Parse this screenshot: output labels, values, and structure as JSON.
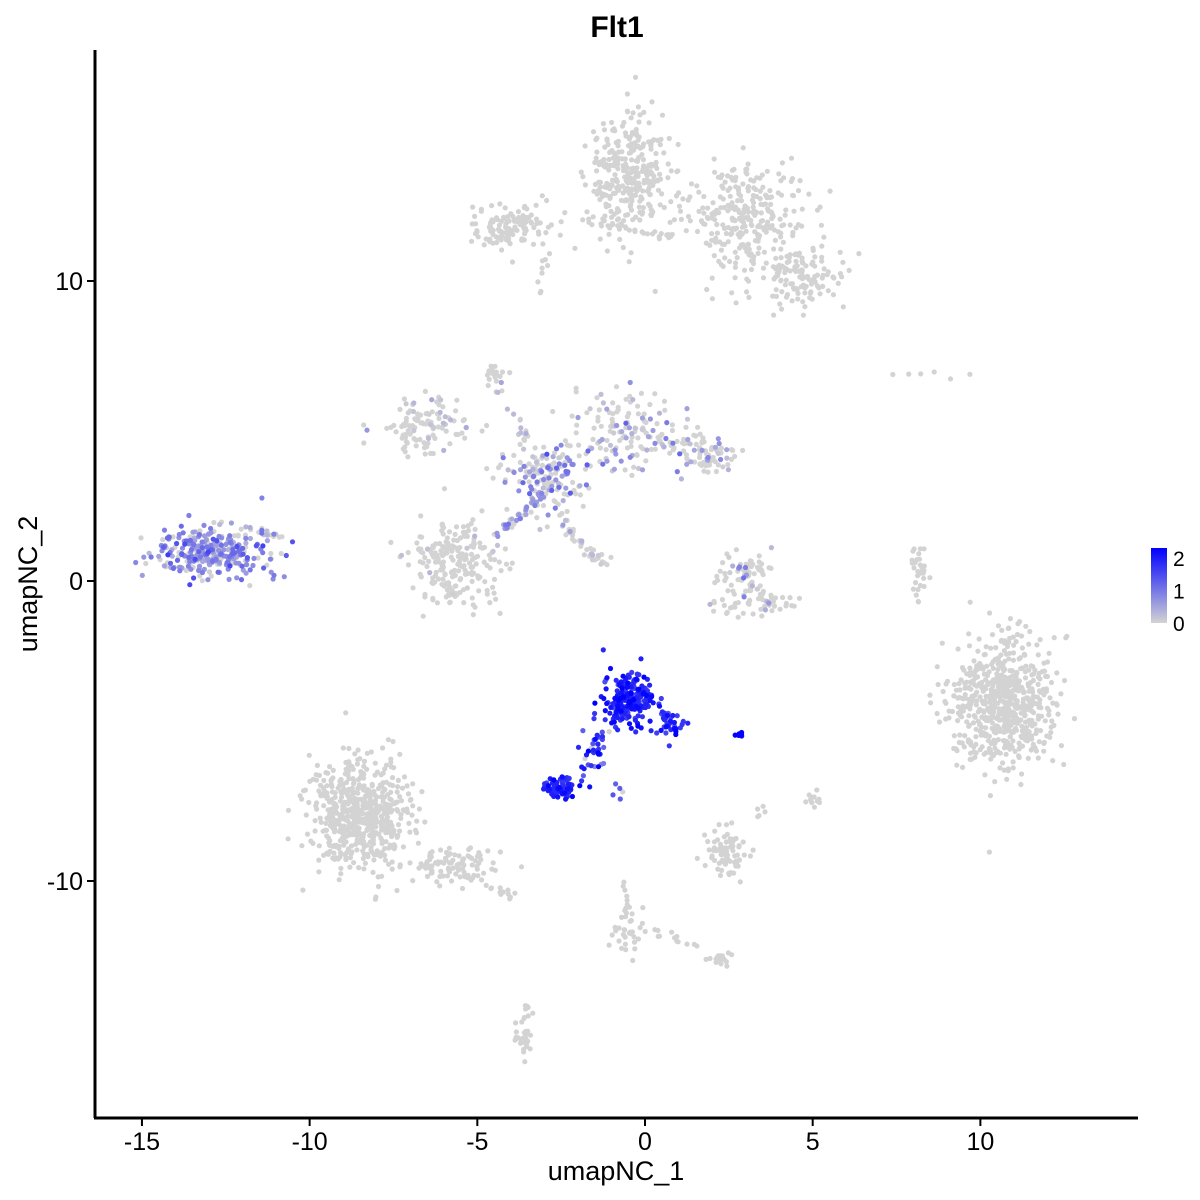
{
  "chart_data": {
    "type": "scatter",
    "title": "Flt1",
    "xlabel": "umapNC_1",
    "ylabel": "umapNC_2",
    "xlim": [
      -16.4,
      14.7
    ],
    "ylim": [
      -17.9,
      17.7
    ],
    "x_ticks": [
      -15,
      -10,
      -5,
      0,
      5,
      10
    ],
    "x_tick_labels": [
      "-15",
      "-10",
      "-5",
      "0",
      "5",
      "10"
    ],
    "y_ticks": [
      -10,
      0,
      10
    ],
    "y_tick_labels": [
      "-10",
      "0",
      "10"
    ],
    "grid": false,
    "legend": {
      "placement": "right",
      "kind": "colorbar",
      "ticks": [
        0,
        1,
        2
      ],
      "tick_labels": [
        "0",
        "1",
        "2"
      ],
      "range": [
        0,
        2.3
      ]
    },
    "colors": {
      "low": "#d3d3d3",
      "high": "#0000ff"
    },
    "clusters": [
      {
        "cx": -0.5,
        "cy": 13.5,
        "sx": 0.8,
        "sy": 1.4,
        "n": 320,
        "expr": 0,
        "expr_sd": 0,
        "frac": 0
      },
      {
        "cx": 2.9,
        "cy": 12.2,
        "sx": 1.2,
        "sy": 1.1,
        "n": 260,
        "expr": 0,
        "expr_sd": 0,
        "frac": 0
      },
      {
        "cx": 4.5,
        "cy": 10.2,
        "sx": 1.0,
        "sy": 0.7,
        "n": 140,
        "expr": 0,
        "expr_sd": 0,
        "frac": 0
      },
      {
        "cx": -4.0,
        "cy": 11.9,
        "sx": 0.9,
        "sy": 0.5,
        "n": 120,
        "expr": 0,
        "expr_sd": 0,
        "frac": 0
      },
      {
        "cx": -4.5,
        "cy": 6.9,
        "sx": 0.25,
        "sy": 0.3,
        "n": 15,
        "expr": 0,
        "expr_sd": 0,
        "frac": 0
      },
      {
        "cx": -6.5,
        "cy": 5.2,
        "sx": 0.9,
        "sy": 0.6,
        "n": 110,
        "expr": 0.25,
        "expr_sd": 0.2,
        "frac": 0.15
      },
      {
        "cx": -3.0,
        "cy": 3.5,
        "sx": 0.9,
        "sy": 0.8,
        "n": 160,
        "expr": 0.7,
        "expr_sd": 0.3,
        "frac": 0.4
      },
      {
        "cx": -0.5,
        "cy": 5.0,
        "sx": 1.0,
        "sy": 0.9,
        "n": 140,
        "expr": 0.5,
        "expr_sd": 0.3,
        "frac": 0.3
      },
      {
        "cx": 1.8,
        "cy": 4.2,
        "sx": 0.7,
        "sy": 0.5,
        "n": 80,
        "expr": 0.5,
        "expr_sd": 0.3,
        "frac": 0.25
      },
      {
        "cx": -5.7,
        "cy": 0.6,
        "sx": 0.9,
        "sy": 1.0,
        "n": 220,
        "expr": 0.2,
        "expr_sd": 0.2,
        "frac": 0.05
      },
      {
        "cx": -13.0,
        "cy": 1.0,
        "sx": 1.1,
        "sy": 0.55,
        "n": 320,
        "expr": 0.8,
        "expr_sd": 0.3,
        "frac": 0.75
      },
      {
        "cx": 2.9,
        "cy": 0.2,
        "sx": 0.6,
        "sy": 0.5,
        "n": 70,
        "expr": 0.4,
        "expr_sd": 0.4,
        "frac": 0.2
      },
      {
        "cx": 3.3,
        "cy": -0.8,
        "sx": 0.8,
        "sy": 0.25,
        "n": 50,
        "expr": 0.2,
        "expr_sd": 0.2,
        "frac": 0.05
      },
      {
        "cx": 8.2,
        "cy": 0.3,
        "sx": 0.2,
        "sy": 0.6,
        "n": 30,
        "expr": 0,
        "expr_sd": 0,
        "frac": 0
      },
      {
        "cx": 10.7,
        "cy": -4.0,
        "sx": 1.0,
        "sy": 1.4,
        "n": 650,
        "expr": 0,
        "expr_sd": 0,
        "frac": 0
      },
      {
        "cx": -0.5,
        "cy": -3.9,
        "sx": 0.5,
        "sy": 0.6,
        "n": 220,
        "expr": 1.9,
        "expr_sd": 0.25,
        "frac": 1
      },
      {
        "cx": 0.8,
        "cy": -4.8,
        "sx": 0.3,
        "sy": 0.4,
        "n": 35,
        "expr": 1.9,
        "expr_sd": 0.3,
        "frac": 1
      },
      {
        "cx": -1.5,
        "cy": -5.6,
        "sx": 0.25,
        "sy": 0.7,
        "n": 25,
        "expr": 1.6,
        "expr_sd": 0.4,
        "frac": 1
      },
      {
        "cx": -2.5,
        "cy": -6.9,
        "sx": 0.35,
        "sy": 0.25,
        "n": 70,
        "expr": 1.9,
        "expr_sd": 0.2,
        "frac": 1
      },
      {
        "cx": 2.8,
        "cy": -5.1,
        "sx": 0.1,
        "sy": 0.04,
        "n": 8,
        "expr": 2.3,
        "expr_sd": 0.05,
        "frac": 1
      },
      {
        "cx": -8.5,
        "cy": -7.8,
        "sx": 1.0,
        "sy": 1.2,
        "n": 600,
        "expr": 0,
        "expr_sd": 0,
        "frac": 0
      },
      {
        "cx": -5.8,
        "cy": -9.5,
        "sx": 1.0,
        "sy": 0.4,
        "n": 90,
        "expr": 0,
        "expr_sd": 0,
        "frac": 0
      },
      {
        "cx": 2.4,
        "cy": -9.1,
        "sx": 0.4,
        "sy": 0.5,
        "n": 80,
        "expr": 0,
        "expr_sd": 0,
        "frac": 0
      },
      {
        "cx": 5.0,
        "cy": -7.3,
        "sx": 0.15,
        "sy": 0.2,
        "n": 12,
        "expr": 0,
        "expr_sd": 0,
        "frac": 0
      },
      {
        "cx": -0.5,
        "cy": -11.8,
        "sx": 0.3,
        "sy": 0.5,
        "n": 30,
        "expr": 0.2,
        "expr_sd": 0.3,
        "frac": 0.1
      },
      {
        "cx": 2.2,
        "cy": -12.6,
        "sx": 0.3,
        "sy": 0.15,
        "n": 20,
        "expr": 0,
        "expr_sd": 0,
        "frac": 0
      },
      {
        "cx": -3.6,
        "cy": -15.0,
        "sx": 0.2,
        "sy": 0.6,
        "n": 35,
        "expr": 0,
        "expr_sd": 0,
        "frac": 0
      }
    ],
    "paths": [
      {
        "from": [
          -3.0,
          3.5
        ],
        "to": [
          -4.5,
          6.8
        ],
        "n": 25,
        "expr": 0.2
      },
      {
        "from": [
          -2.5,
          2.0
        ],
        "to": [
          -1.3,
          0.6
        ],
        "n": 30,
        "expr": 0.2
      },
      {
        "from": [
          -1.0,
          0.6
        ],
        "to": [
          -1.7,
          0.9
        ],
        "n": 10,
        "expr": 0
      },
      {
        "from": [
          -4.4,
          1.5
        ],
        "to": [
          -2.8,
          3.2
        ],
        "n": 40,
        "expr": 0.6
      },
      {
        "from": [
          -11.9,
          1.8
        ],
        "to": [
          -10.8,
          1.4
        ],
        "n": 12,
        "expr": 0.3
      },
      {
        "from": [
          -1.9,
          12.0
        ],
        "to": [
          0.8,
          11.5
        ],
        "n": 25,
        "expr": 0
      },
      {
        "from": [
          -3.0,
          11.6
        ],
        "to": [
          -3.1,
          9.2
        ],
        "n": 10,
        "expr": 0
      },
      {
        "from": [
          -1.0,
          -4.5
        ],
        "to": [
          -1.9,
          -6.3
        ],
        "n": 15,
        "expr": 1.7
      },
      {
        "from": [
          -0.7,
          -9.9
        ],
        "to": [
          -0.4,
          -11.5
        ],
        "n": 12,
        "expr": 0
      },
      {
        "from": [
          0.1,
          -11.6
        ],
        "to": [
          1.9,
          -12.3
        ],
        "n": 12,
        "expr": 0
      },
      {
        "from": [
          -6.5,
          -9.2
        ],
        "to": [
          -4.0,
          -10.5
        ],
        "n": 25,
        "expr": 0
      },
      {
        "from": [
          7.0,
          6.9
        ],
        "to": [
          9.9,
          7.0
        ],
        "n": 6,
        "expr": 0
      },
      {
        "from": [
          -1.0,
          -6.8
        ],
        "to": [
          -0.8,
          -7.3
        ],
        "n": 5,
        "expr": 1.3
      },
      {
        "from": [
          3.3,
          -8.0
        ],
        "to": [
          3.5,
          -7.5
        ],
        "n": 5,
        "expr": 0
      }
    ]
  }
}
